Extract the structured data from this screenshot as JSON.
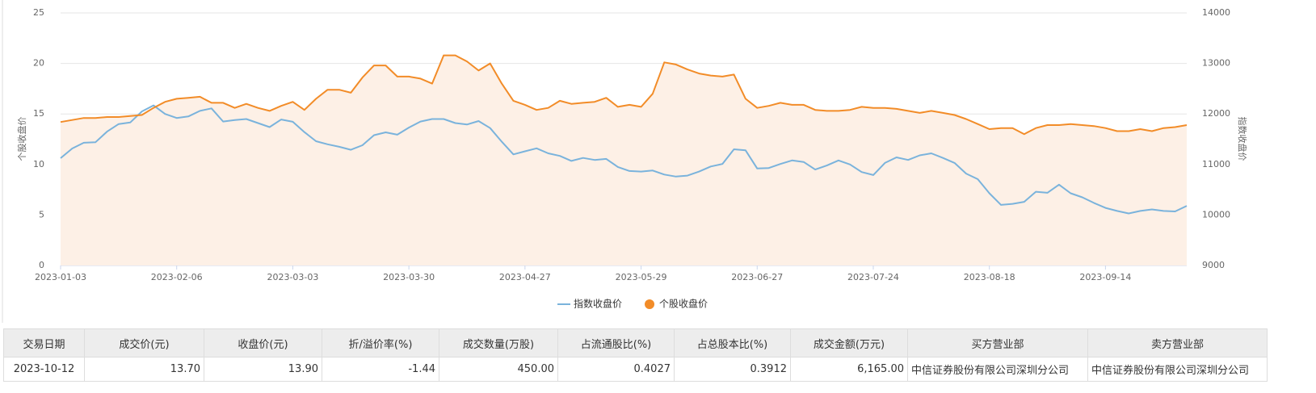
{
  "chart_data": {
    "type": "line",
    "categories": [
      "2023-01-03",
      null,
      null,
      null,
      null,
      null,
      null,
      null,
      null,
      null,
      "2023-02-06",
      null,
      null,
      null,
      null,
      null,
      null,
      null,
      null,
      null,
      "2023-03-03",
      null,
      null,
      null,
      null,
      null,
      null,
      null,
      null,
      null,
      "2023-03-30",
      null,
      null,
      null,
      null,
      null,
      null,
      null,
      null,
      null,
      "2023-04-27",
      null,
      null,
      null,
      null,
      null,
      null,
      null,
      null,
      null,
      "2023-05-29",
      null,
      null,
      null,
      null,
      null,
      null,
      null,
      null,
      null,
      "2023-06-27",
      null,
      null,
      null,
      null,
      null,
      null,
      null,
      null,
      null,
      "2023-07-24",
      null,
      null,
      null,
      null,
      null,
      null,
      null,
      null,
      null,
      "2023-08-18",
      null,
      null,
      null,
      null,
      null,
      null,
      null,
      null,
      null,
      "2023-09-14",
      null,
      null,
      null,
      null,
      null,
      null,
      null
    ],
    "y_label": "个股收盘价",
    "y2_label": "指数收盘价",
    "ylim": [
      0,
      25
    ],
    "yticks": [
      0,
      5,
      10,
      15,
      20,
      25
    ],
    "y2lim": [
      9000,
      14000
    ],
    "y2ticks": [
      9000,
      10000,
      11000,
      12000,
      13000,
      14000
    ],
    "grid": true,
    "series": [
      {
        "name": "指数收盘价",
        "color": "#7ab3dc",
        "axis": "y2",
        "legend_icon": "line",
        "values": [
          11125,
          11316,
          11430,
          11440,
          11650,
          11800,
          11830,
          12050,
          12170,
          12000,
          11920,
          11950,
          12060,
          12110,
          11850,
          11880,
          11900,
          11820,
          11740,
          11890,
          11845,
          11640,
          11460,
          11400,
          11350,
          11290,
          11380,
          11580,
          11635,
          11590,
          11730,
          11850,
          11900,
          11900,
          11820,
          11790,
          11860,
          11720,
          11450,
          11200,
          11260,
          11320,
          11220,
          11170,
          11070,
          11130,
          11090,
          11110,
          10950,
          10870,
          10860,
          10880,
          10800,
          10760,
          10780,
          10860,
          10960,
          11010,
          11300,
          11280,
          10920,
          10930,
          11010,
          11080,
          11050,
          10900,
          10980,
          11080,
          11000,
          10850,
          10790,
          11030,
          11140,
          11090,
          11180,
          11220,
          11130,
          11030,
          10820,
          10710,
          10430,
          10200,
          10220,
          10260,
          10460,
          10440,
          10600,
          10430,
          10350,
          10240,
          10140,
          10080,
          10030,
          10080,
          10110,
          10080,
          10070,
          10180
        ]
      },
      {
        "name": "个股收盘价",
        "color": "#f28c28",
        "axis": "y",
        "legend_icon": "circle",
        "area_color": "#fdf0e6",
        "values": [
          14.2,
          14.4,
          14.6,
          14.6,
          14.7,
          14.7,
          14.8,
          14.9,
          15.6,
          16.2,
          16.5,
          16.6,
          16.7,
          16.1,
          16.1,
          15.6,
          16.0,
          15.6,
          15.3,
          15.8,
          16.2,
          15.4,
          16.5,
          17.4,
          17.4,
          17.1,
          18.6,
          19.8,
          19.8,
          18.7,
          18.7,
          18.5,
          18.0,
          20.8,
          20.8,
          20.2,
          19.3,
          20.0,
          18.0,
          16.3,
          15.9,
          15.4,
          15.6,
          16.3,
          16.0,
          16.1,
          16.2,
          16.6,
          15.7,
          15.9,
          15.7,
          17.0,
          20.1,
          19.9,
          19.4,
          19.0,
          18.8,
          18.7,
          18.9,
          16.5,
          15.6,
          15.8,
          16.1,
          15.9,
          15.9,
          15.4,
          15.3,
          15.3,
          15.4,
          15.7,
          15.6,
          15.6,
          15.5,
          15.3,
          15.1,
          15.3,
          15.1,
          14.9,
          14.5,
          14.0,
          13.5,
          13.6,
          13.6,
          13.0,
          13.6,
          13.9,
          13.9,
          14.0,
          13.9,
          13.8,
          13.6,
          13.3,
          13.3,
          13.5,
          13.3,
          13.6,
          13.7,
          13.9
        ]
      }
    ]
  },
  "table": {
    "header": [
      "交易日期",
      "成交价(元)",
      "收盘价(元)",
      "折/溢价率(%)",
      "成交数量(万股)",
      "占流通股比(%)",
      "占总股本比(%)",
      "成交金额(万元)",
      "买方营业部",
      "卖方营业部"
    ],
    "rows": [
      [
        "2023-10-12",
        "13.70",
        "13.90",
        "-1.44",
        "450.00",
        "0.4027",
        "0.3912",
        "6,165.00",
        "中信证券股份有限公司深圳分公司",
        "中信证券股份有限公司深圳分公司"
      ]
    ]
  }
}
